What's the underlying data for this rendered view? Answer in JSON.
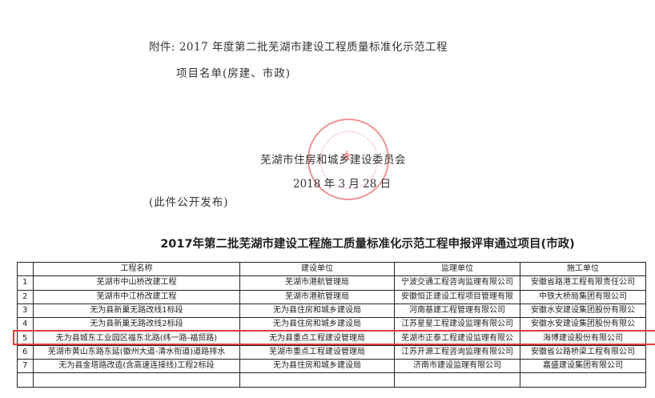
{
  "header": {
    "attachment_line1": "附件: 2017 年度第二批芜湖市建设工程质量标准化示范工程",
    "attachment_line2": "项目名单(房建、市政)",
    "issuer": "芜湖市住房和城乡建设委员会",
    "date": "2018 年 3 月 28 日",
    "publish_note": "(此件公开发布)",
    "seal_color": "#e03c3c"
  },
  "table": {
    "title": "2017年第二批芜湖市建设工程施工质量标准化示范工程申报评审通过项目(市政)",
    "columns": [
      "",
      "工程名称",
      "建设单位",
      "监理单位",
      "施工单位"
    ],
    "rows": [
      [
        "1",
        "芜湖市中山桥改建工程",
        "芜湖市港航管理局",
        "宁波交通工程咨询监理有限公司",
        "安徽省路港工程有限责任公司"
      ],
      [
        "2",
        "芜湖市中江桥改建工程",
        "芜湖市港航管理局",
        "安徽恒正建设工程项目管理有限",
        "中铁大桥局集团有限公司"
      ],
      [
        "3",
        "无为县新巢无路改线1标段",
        "无为县住房和城乡建设局",
        "河南基建工程管理有限公司",
        "安徽水安建设集团股份有限公"
      ],
      [
        "4",
        "无为县新巢无路改线2标段",
        "无为县住房和城乡建设局",
        "江苏星星工程建设监理有限公司",
        "安徽水安建设集团股份有限公"
      ],
      [
        "5",
        "无为县城东工业园区福东北路(纬一路-福贸路)",
        "无为县重点工程建设管理局",
        "芜湖市正泰工程建设监理有限公",
        "海博建设股份有限公司"
      ],
      [
        "6",
        "芜湖市黄山东路东延(徽州大道-清水衔道)道路排水",
        "芜湖市重点工程建设管理局",
        "江苏开源工程咨询监理有限公司",
        "安徽省公路桥梁工程有限公司"
      ],
      [
        "7",
        "无为县金塔路改造(含高速连接线)工程2标段",
        "无为县住房和城乡建设局",
        "济南市建设监理有限公司",
        "嘉盛建设集团有限公司"
      ],
      [
        "",
        "",
        "",
        "",
        ""
      ]
    ],
    "highlighted_row": "5",
    "highlight_color": "#e23b3b"
  }
}
